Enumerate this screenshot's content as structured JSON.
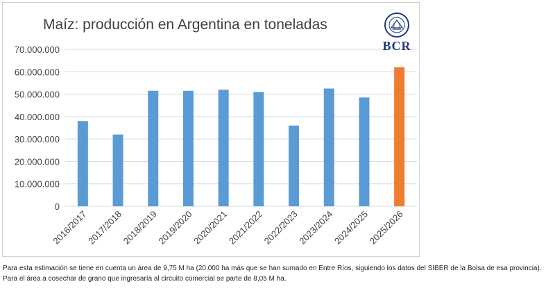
{
  "chart_data": {
    "type": "bar",
    "title": "Maíz: producción en Argentina en toneladas",
    "xlabel": "",
    "ylabel": "",
    "ylim": [
      0,
      70000000
    ],
    "yticks": [
      0,
      10000000,
      20000000,
      30000000,
      40000000,
      50000000,
      60000000,
      70000000
    ],
    "ytick_labels": [
      "0",
      "10.000.000",
      "20.000.000",
      "30.000.000",
      "40.000.000",
      "50.000.000",
      "60.000.000",
      "70.000.000"
    ],
    "grid": true,
    "categories": [
      "2016/2017",
      "2017/2018",
      "2018/2019",
      "2019/2020",
      "2020/2021",
      "2021/2022",
      "2022/2023",
      "2023/2024",
      "2024/2025",
      "2025/2026"
    ],
    "values": [
      38000000,
      32000000,
      51500000,
      51500000,
      52000000,
      51000000,
      36000000,
      52500000,
      48500000,
      62000000
    ],
    "colors": [
      "#5b9bd5",
      "#5b9bd5",
      "#5b9bd5",
      "#5b9bd5",
      "#5b9bd5",
      "#5b9bd5",
      "#5b9bd5",
      "#5b9bd5",
      "#5b9bd5",
      "#ed7d31"
    ]
  },
  "logo": {
    "text": "BCR",
    "seal_text": "BOLSA DE COMERCIO DE ROSARIO"
  },
  "caption": {
    "text": "Para esta estimación se tiene en cuenta un área de 9,75 M ha (20.000 ha más que se han sumado en Entre Ríos, siguiendo los datos del SIBER de la Bolsa de esa provincia). Para el área a cosechar de grano que ingresaría al circuito comercial se parte de 8,05 M ha."
  },
  "colors": {
    "bar": "#5b9bd5",
    "highlight_bar": "#ed7d31",
    "gridline": "#d9d9d9",
    "logo": "#1f3a7a"
  }
}
